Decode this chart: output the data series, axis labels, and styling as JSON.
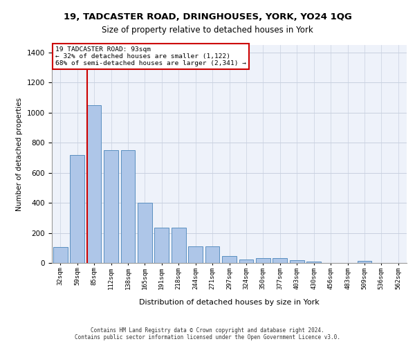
{
  "title": "19, TADCASTER ROAD, DRINGHOUSES, YORK, YO24 1QG",
  "subtitle": "Size of property relative to detached houses in York",
  "xlabel": "Distribution of detached houses by size in York",
  "ylabel": "Number of detached properties",
  "bar_values": [
    105,
    720,
    1050,
    750,
    750,
    400,
    235,
    235,
    110,
    110,
    45,
    25,
    30,
    30,
    20,
    10,
    0,
    0,
    15,
    0,
    0
  ],
  "bar_labels": [
    "32sqm",
    "59sqm",
    "85sqm",
    "112sqm",
    "138sqm",
    "165sqm",
    "191sqm",
    "218sqm",
    "244sqm",
    "271sqm",
    "297sqm",
    "324sqm",
    "350sqm",
    "377sqm",
    "403sqm",
    "430sqm",
    "456sqm",
    "483sqm",
    "509sqm",
    "536sqm",
    "562sqm"
  ],
  "bar_color": "#aec6e8",
  "bar_edgecolor": "#5a8fc0",
  "vline_index": 2,
  "vline_color": "#cc0000",
  "annotation_text": "19 TADCASTER ROAD: 93sqm\n← 32% of detached houses are smaller (1,122)\n68% of semi-detached houses are larger (2,341) →",
  "annotation_box_facecolor": "#ffffff",
  "annotation_box_edgecolor": "#cc0000",
  "ylim": [
    0,
    1450
  ],
  "yticks": [
    0,
    200,
    400,
    600,
    800,
    1000,
    1200,
    1400
  ],
  "footer_line1": "Contains HM Land Registry data © Crown copyright and database right 2024.",
  "footer_line2": "Contains public sector information licensed under the Open Government Licence v3.0.",
  "bg_color": "#eef2fa",
  "grid_color": "#c8d0e0",
  "title_fontsize": 9.5,
  "subtitle_fontsize": 8.5
}
